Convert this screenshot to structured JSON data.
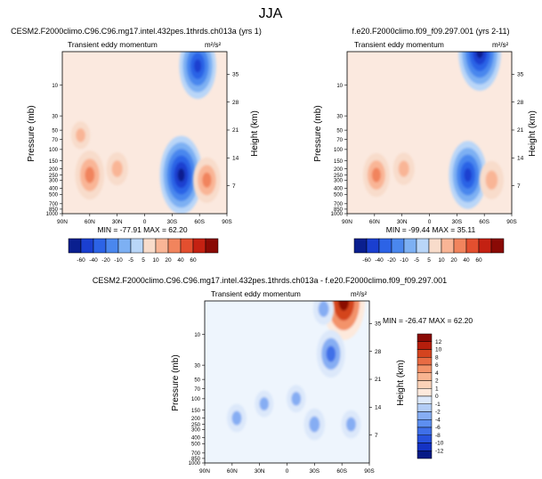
{
  "page_title": "JJA",
  "colors": {
    "cb_main": [
      "#0a1f8f",
      "#1a3fd0",
      "#2c63e6",
      "#4a87ee",
      "#7db0f3",
      "#b9d6f8",
      "#f8dccb",
      "#f9b596",
      "#f1845d",
      "#e34f2f",
      "#c42112",
      "#8a0a05"
    ],
    "cb_diff": [
      "#061a86",
      "#1433c4",
      "#2751dc",
      "#3f6fe8",
      "#5d8ff0",
      "#86adf3",
      "#b3cdf6",
      "#dce8fa",
      "#fde9dc",
      "#fbd2b8",
      "#f8b490",
      "#f3936a",
      "#e86b43",
      "#d4441f",
      "#b61e0c",
      "#8a0a05"
    ]
  },
  "chart_data": [
    {
      "id": "panel-a",
      "type": "heatmap",
      "title": "CESM2.F2000climo.C96.C96.mg17.intel.432pes.1thrds.ch013a (yrs 1)",
      "subtitle_left": "Transient eddy momentum",
      "units": "m²/s²",
      "xlabel": "",
      "ylabel": "Pressure (mb)",
      "ylabel_right": "Height (km)",
      "xticks": [
        "90N",
        "60N",
        "30N",
        "0",
        "30S",
        "60S",
        "90S"
      ],
      "yticks": [
        "10",
        "30",
        "50",
        "70",
        "100",
        "150",
        "200",
        "250",
        "300",
        "400",
        "500",
        "700",
        "850",
        "1000"
      ],
      "yticks_right": [
        "35",
        "28",
        "21",
        "14",
        "7"
      ],
      "min_max": "MIN = -77.91   MAX = 62.20",
      "features": [
        {
          "lat": 60,
          "p": 250,
          "value": 35
        },
        {
          "lat": 30,
          "p": 200,
          "value": 12
        },
        {
          "lat": -40,
          "p": 250,
          "value": -77.91
        },
        {
          "lat": -58,
          "p": 5,
          "value": -60
        },
        {
          "lat": -68,
          "p": 300,
          "value": 30
        },
        {
          "lat": 70,
          "p": 60,
          "value": 4
        }
      ],
      "colorbar_labels": [
        "-60",
        "-40",
        "-20",
        "-10",
        "-5",
        "5",
        "10",
        "20",
        "40",
        "60"
      ]
    },
    {
      "id": "panel-b",
      "type": "heatmap",
      "title": "f.e20.F2000climo.f09_f09.297.001 (yrs 2-11)",
      "subtitle_left": "Transient eddy momentum",
      "units": "m²/s²",
      "xlabel": "",
      "ylabel": "Pressure (mb)",
      "ylabel_right": "Height (km)",
      "xticks": [
        "90N",
        "60N",
        "30N",
        "0",
        "30S",
        "60S",
        "90S"
      ],
      "yticks": [
        "10",
        "30",
        "50",
        "70",
        "100",
        "150",
        "200",
        "250",
        "300",
        "400",
        "500",
        "700",
        "850",
        "1000"
      ],
      "yticks_right": [
        "35",
        "28",
        "21",
        "14",
        "7"
      ],
      "min_max": "MIN = -99.44   MAX = 35.11",
      "features": [
        {
          "lat": 58,
          "p": 250,
          "value": 35.11
        },
        {
          "lat": 28,
          "p": 200,
          "value": 14
        },
        {
          "lat": -42,
          "p": 250,
          "value": -80
        },
        {
          "lat": -55,
          "p": 3,
          "value": -99.44
        },
        {
          "lat": -68,
          "p": 300,
          "value": 25
        }
      ],
      "colorbar_labels": [
        "-60",
        "-40",
        "-20",
        "-10",
        "-5",
        "5",
        "10",
        "20",
        "40",
        "60"
      ]
    },
    {
      "id": "panel-c",
      "type": "heatmap",
      "title": "CESM2.F2000climo.C96.C96.mg17.intel.432pes.1thrds.ch013a - f.e20.F2000climo.f09_f09.297.001",
      "subtitle_left": "Transient eddy momentum",
      "units": "m²/s²",
      "xlabel": "",
      "ylabel": "Pressure (mb)",
      "ylabel_right": "Height (km)",
      "xticks": [
        "90N",
        "60N",
        "30N",
        "0",
        "30S",
        "60S",
        "90S"
      ],
      "yticks": [
        "10",
        "30",
        "50",
        "70",
        "100",
        "150",
        "200",
        "250",
        "300",
        "400",
        "500",
        "700",
        "850",
        "1000"
      ],
      "yticks_right": [
        "35",
        "28",
        "21",
        "14",
        "7"
      ],
      "min_max": "MIN = -26.47   MAX = 62.20",
      "features": [
        {
          "lat": -62,
          "p": 3,
          "value": 62.2
        },
        {
          "lat": -40,
          "p": 4,
          "value": -8
        },
        {
          "lat": -48,
          "p": 20,
          "value": -26.47
        },
        {
          "lat": -30,
          "p": 250,
          "value": -8
        },
        {
          "lat": 55,
          "p": 200,
          "value": -4
        },
        {
          "lat": 25,
          "p": 120,
          "value": -2
        },
        {
          "lat": -10,
          "p": 100,
          "value": -3
        },
        {
          "lat": -70,
          "p": 250,
          "value": -4
        }
      ],
      "colorbar_labels": [
        "12",
        "10",
        "8",
        "6",
        "4",
        "2",
        "1",
        "0",
        "-1",
        "-2",
        "-4",
        "-6",
        "-8",
        "-10",
        "-12"
      ]
    }
  ]
}
